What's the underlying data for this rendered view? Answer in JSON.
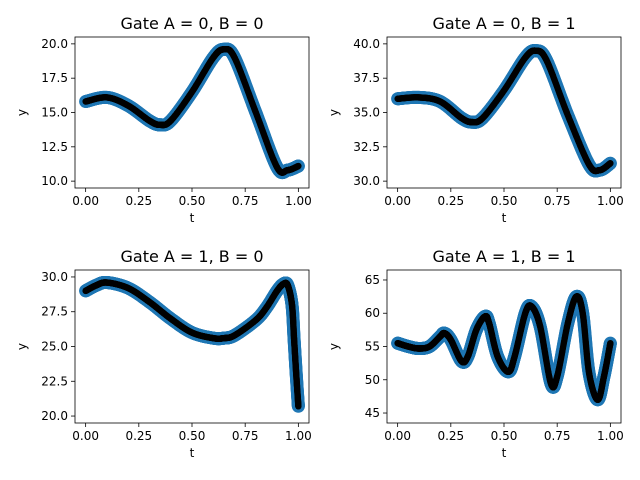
{
  "chart_data": [
    {
      "type": "scatter",
      "title": "Gate A = 0, B = 0",
      "xlabel": "t",
      "ylabel": "y",
      "xlim": [
        -0.05,
        1.05
      ],
      "ylim": [
        9.5,
        20.5
      ],
      "xticks": [
        0.0,
        0.25,
        0.5,
        0.75,
        1.0
      ],
      "xtick_labels": [
        "0.00",
        "0.25",
        "0.50",
        "0.75",
        "1.00"
      ],
      "yticks": [
        10.0,
        12.5,
        15.0,
        17.5,
        20.0
      ],
      "ytick_labels": [
        "10.0",
        "12.5",
        "15.0",
        "17.5",
        "20.0"
      ],
      "series": [
        {
          "color": "#1f77b4",
          "marker": "large-dot",
          "x": [
            0.0,
            0.1,
            0.2,
            0.3,
            0.35,
            0.4,
            0.5,
            0.6,
            0.65,
            0.7,
            0.8,
            0.9,
            0.95,
            1.0
          ],
          "y": [
            15.8,
            16.1,
            15.5,
            14.4,
            14.1,
            14.4,
            16.5,
            19.0,
            19.6,
            19.0,
            15.0,
            11.0,
            10.8,
            11.1
          ]
        },
        {
          "color": "#000000",
          "marker": "small-dot",
          "x": [
            0.0,
            0.1,
            0.2,
            0.3,
            0.35,
            0.4,
            0.5,
            0.6,
            0.65,
            0.7,
            0.8,
            0.9,
            0.95,
            1.0
          ],
          "y": [
            15.8,
            16.1,
            15.5,
            14.4,
            14.1,
            14.4,
            16.5,
            19.0,
            19.6,
            19.0,
            15.0,
            11.0,
            10.8,
            11.1
          ]
        }
      ]
    },
    {
      "type": "scatter",
      "title": "Gate A = 0, B = 1",
      "xlabel": "t",
      "ylabel": "y",
      "xlim": [
        -0.05,
        1.05
      ],
      "ylim": [
        29.5,
        40.5
      ],
      "xticks": [
        0.0,
        0.25,
        0.5,
        0.75,
        1.0
      ],
      "xtick_labels": [
        "0.00",
        "0.25",
        "0.50",
        "0.75",
        "1.00"
      ],
      "yticks": [
        30.0,
        32.5,
        35.0,
        37.5,
        40.0
      ],
      "ytick_labels": [
        "30.0",
        "32.5",
        "35.0",
        "37.5",
        "40.0"
      ],
      "series": [
        {
          "color": "#1f77b4",
          "marker": "large-dot",
          "x": [
            0.0,
            0.1,
            0.2,
            0.3,
            0.35,
            0.4,
            0.5,
            0.6,
            0.65,
            0.7,
            0.8,
            0.9,
            0.95,
            1.0
          ],
          "y": [
            36.0,
            36.1,
            35.8,
            34.6,
            34.3,
            34.6,
            36.6,
            39.0,
            39.5,
            38.8,
            34.8,
            31.2,
            30.8,
            31.3
          ]
        },
        {
          "color": "#000000",
          "marker": "small-dot",
          "x": [
            0.0,
            0.1,
            0.2,
            0.3,
            0.35,
            0.4,
            0.5,
            0.6,
            0.65,
            0.7,
            0.8,
            0.9,
            0.95,
            1.0
          ],
          "y": [
            36.0,
            36.1,
            35.8,
            34.6,
            34.3,
            34.6,
            36.6,
            39.0,
            39.5,
            38.8,
            34.8,
            31.2,
            30.8,
            31.3
          ]
        }
      ]
    },
    {
      "type": "scatter",
      "title": "Gate A = 1, B = 0",
      "xlabel": "t",
      "ylabel": "y",
      "xlim": [
        -0.05,
        1.05
      ],
      "ylim": [
        19.5,
        30.5
      ],
      "xticks": [
        0.0,
        0.25,
        0.5,
        0.75,
        1.0
      ],
      "xtick_labels": [
        "0.00",
        "0.25",
        "0.50",
        "0.75",
        "1.00"
      ],
      "yticks": [
        20.0,
        22.5,
        25.0,
        27.5,
        30.0
      ],
      "ytick_labels": [
        "20.0",
        "22.5",
        "25.0",
        "27.5",
        "30.0"
      ],
      "series": [
        {
          "color": "#1f77b4",
          "marker": "large-dot",
          "x": [
            0.0,
            0.05,
            0.1,
            0.2,
            0.3,
            0.4,
            0.5,
            0.6,
            0.65,
            0.7,
            0.8,
            0.85,
            0.9,
            0.93,
            0.95,
            0.97,
            0.98,
            0.99,
            1.0
          ],
          "y": [
            29.0,
            29.4,
            29.6,
            29.2,
            28.2,
            27.0,
            26.0,
            25.6,
            25.6,
            25.8,
            26.9,
            27.8,
            29.0,
            29.5,
            29.4,
            28.0,
            25.5,
            23.0,
            20.7
          ]
        },
        {
          "color": "#000000",
          "marker": "small-dot",
          "x": [
            0.0,
            0.05,
            0.1,
            0.2,
            0.3,
            0.4,
            0.5,
            0.6,
            0.65,
            0.7,
            0.8,
            0.85,
            0.9,
            0.93,
            0.95,
            0.97,
            0.98,
            0.99,
            1.0
          ],
          "y": [
            29.0,
            29.4,
            29.6,
            29.2,
            28.2,
            27.0,
            26.0,
            25.6,
            25.6,
            25.8,
            26.9,
            27.8,
            29.0,
            29.5,
            29.4,
            28.0,
            25.5,
            23.0,
            20.7
          ]
        }
      ]
    },
    {
      "type": "scatter",
      "title": "Gate A = 1, B = 1",
      "xlabel": "t",
      "ylabel": "y",
      "xlim": [
        -0.05,
        1.05
      ],
      "ylim": [
        43.5,
        66.5
      ],
      "xticks": [
        0.0,
        0.25,
        0.5,
        0.75,
        1.0
      ],
      "xtick_labels": [
        "0.00",
        "0.25",
        "0.50",
        "0.75",
        "1.00"
      ],
      "yticks": [
        45,
        50,
        55,
        60,
        65
      ],
      "ytick_labels": [
        "45",
        "50",
        "55",
        "60",
        "65"
      ],
      "series": [
        {
          "color": "#1f77b4",
          "marker": "large-dot",
          "x": [
            0.0,
            0.05,
            0.1,
            0.15,
            0.2,
            0.22,
            0.25,
            0.3,
            0.33,
            0.37,
            0.41,
            0.43,
            0.47,
            0.52,
            0.55,
            0.6,
            0.63,
            0.67,
            0.72,
            0.75,
            0.8,
            0.84,
            0.87,
            0.9,
            0.94,
            0.97,
            1.0
          ],
          "y": [
            55.5,
            55.0,
            54.7,
            55.0,
            56.5,
            57.0,
            56.0,
            52.8,
            53.5,
            57.5,
            59.5,
            58.5,
            53.5,
            51.2,
            53.5,
            60.0,
            61.0,
            58.0,
            49.5,
            50.5,
            58.5,
            62.5,
            60.0,
            51.0,
            47.0,
            50.5,
            55.5
          ]
        },
        {
          "color": "#000000",
          "marker": "small-dot",
          "x": [
            0.0,
            0.05,
            0.1,
            0.15,
            0.2,
            0.22,
            0.25,
            0.3,
            0.33,
            0.37,
            0.41,
            0.43,
            0.47,
            0.52,
            0.55,
            0.6,
            0.63,
            0.67,
            0.72,
            0.75,
            0.8,
            0.84,
            0.87,
            0.9,
            0.94,
            0.97,
            1.0
          ],
          "y": [
            55.5,
            55.0,
            54.7,
            55.0,
            56.5,
            57.0,
            56.0,
            52.8,
            53.5,
            57.5,
            59.5,
            58.5,
            53.5,
            51.2,
            53.5,
            60.0,
            61.0,
            58.0,
            49.5,
            50.5,
            58.5,
            62.5,
            60.0,
            51.0,
            47.0,
            50.5,
            55.5
          ]
        }
      ]
    }
  ]
}
